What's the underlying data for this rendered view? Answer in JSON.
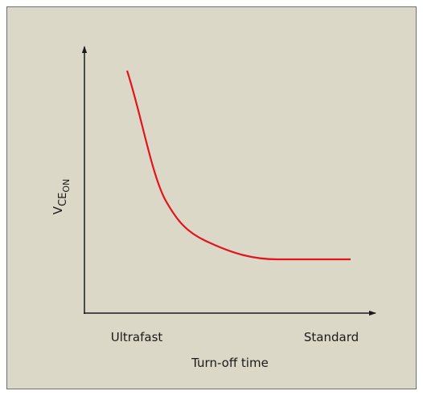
{
  "axes": {
    "y_label": {
      "main": "V",
      "sub": "CE",
      "subsub": "ON"
    },
    "x_label": "Turn-off time",
    "x_left": "Ultrafast",
    "x_right": "Standard"
  }
}
